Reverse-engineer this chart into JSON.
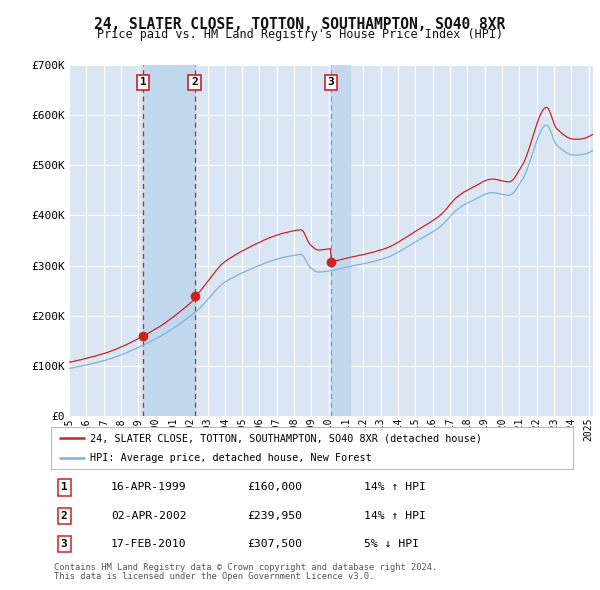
{
  "title": "24, SLATER CLOSE, TOTTON, SOUTHAMPTON, SO40 8XR",
  "subtitle": "Price paid vs. HM Land Registry's House Price Index (HPI)",
  "legend_line1": "24, SLATER CLOSE, TOTTON, SOUTHAMPTON, SO40 8XR (detached house)",
  "legend_line2": "HPI: Average price, detached house, New Forest",
  "sale1_date": "1999-04-16",
  "sale1_price": 160000,
  "sale2_date": "2002-04-02",
  "sale2_price": 239950,
  "sale3_date": "2010-02-17",
  "sale3_price": 307500,
  "table_rows": [
    [
      "1",
      "16-APR-1999",
      "£160,000",
      "14% ↑ HPI"
    ],
    [
      "2",
      "02-APR-2002",
      "£239,950",
      "14% ↑ HPI"
    ],
    [
      "3",
      "17-FEB-2010",
      "£307,500",
      "5% ↓ HPI"
    ]
  ],
  "footer_line1": "Contains HM Land Registry data © Crown copyright and database right 2024.",
  "footer_line2": "This data is licensed under the Open Government Licence v3.0.",
  "hpi_color": "#7ab4d8",
  "price_color": "#cc2222",
  "dot_color": "#cc2222",
  "bg_color": "#dae6f3",
  "shade_color": "#c2d8ee",
  "ylim": [
    0,
    700000
  ],
  "yticks": [
    0,
    100000,
    200000,
    300000,
    400000,
    500000,
    600000,
    700000
  ],
  "ytick_labels": [
    "£0",
    "£100K",
    "£200K",
    "£300K",
    "£400K",
    "£500K",
    "£600K",
    "£700K"
  ]
}
